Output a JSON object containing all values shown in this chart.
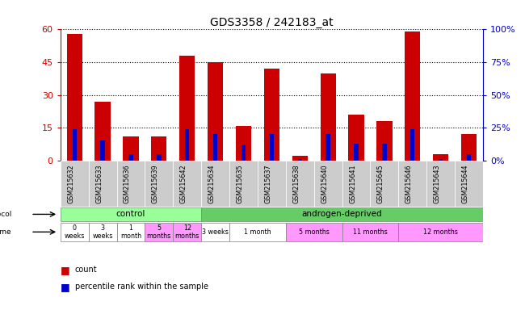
{
  "title": "GDS3358 / 242183_at",
  "samples": [
    "GSM215632",
    "GSM215633",
    "GSM215636",
    "GSM215639",
    "GSM215642",
    "GSM215634",
    "GSM215635",
    "GSM215637",
    "GSM215638",
    "GSM215640",
    "GSM215641",
    "GSM215645",
    "GSM215646",
    "GSM215643",
    "GSM215644"
  ],
  "count_values": [
    58,
    27,
    11,
    11,
    48,
    45,
    16,
    42,
    2,
    40,
    21,
    18,
    59,
    3,
    12
  ],
  "percentile_values": [
    24,
    15,
    5,
    5,
    24,
    20,
    12,
    20,
    1,
    20,
    13,
    13,
    24,
    1,
    5
  ],
  "ylim_left": [
    0,
    60
  ],
  "ylim_right": [
    0,
    100
  ],
  "yticks_left": [
    0,
    15,
    30,
    45,
    60
  ],
  "yticks_right": [
    0,
    25,
    50,
    75,
    100
  ],
  "bar_color_red": "#CC0000",
  "bar_color_blue": "#0000CC",
  "background_color": "#ffffff",
  "label_color_left": "#CC0000",
  "label_color_right": "#0000CC",
  "tick_label_bg": "#dddddd",
  "control_color": "#99FF99",
  "androgen_color": "#66CC66",
  "white_time_color": "#ffffff",
  "pink_time_color": "#FF99FF",
  "xlabel_left": "count",
  "xlabel_right": "percentile rank within the sample"
}
